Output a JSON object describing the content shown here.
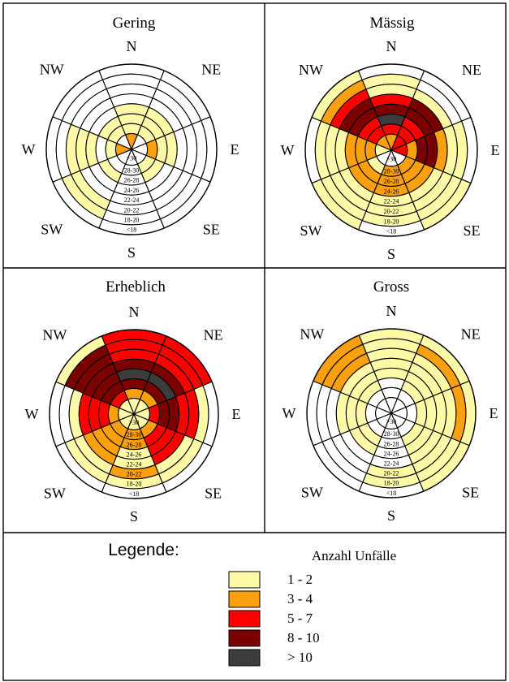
{
  "colors": {
    "empty": "#ffffff",
    "c1": "#fdf9a6",
    "c2": "#f9a011",
    "c3": "#ff0000",
    "c4": "#7b0000",
    "c5": "#3c3c3c",
    "stroke": "#000000"
  },
  "directions": [
    "N",
    "NE",
    "E",
    "SE",
    "S",
    "SW",
    "W",
    "NW"
  ],
  "ring_labels": [
    "<18",
    "18-20",
    "20-22",
    "22-24",
    "24-26",
    "26-28",
    "28-30",
    ">30"
  ],
  "legend": {
    "title": "Legende:",
    "subtitle": "Anzahl Unfälle",
    "items": [
      {
        "label": "1 - 2",
        "color_key": "c1"
      },
      {
        "label": "3 - 4",
        "color_key": "c2"
      },
      {
        "label": "5 - 7",
        "color_key": "c3"
      },
      {
        "label": "8 - 10",
        "color_key": "c4"
      },
      {
        "label": "> 10",
        "color_key": "c5"
      }
    ]
  },
  "chart_data": [
    {
      "type": "heatmap",
      "title": "Gering",
      "rings": [
        "<18",
        "18-20",
        "20-22",
        "22-24",
        "24-26",
        "26-28",
        "28-30",
        ">30"
      ],
      "sectors": [
        "N",
        "NE",
        "E",
        "SE",
        "S",
        "SW",
        "W",
        "NW"
      ],
      "cells": [
        [
          0,
          0,
          0,
          0,
          0,
          0,
          0,
          0
        ],
        [
          0,
          0,
          0,
          0,
          0,
          1,
          0,
          0
        ],
        [
          0,
          0,
          0,
          0,
          0,
          1,
          1,
          0
        ],
        [
          0,
          0,
          0,
          0,
          0,
          0,
          1,
          0
        ],
        [
          1,
          1,
          1,
          0,
          0,
          0,
          1,
          0
        ],
        [
          1,
          1,
          1,
          1,
          0,
          1,
          0,
          1
        ],
        [
          1,
          1,
          2,
          1,
          0,
          0,
          1,
          1
        ],
        [
          2,
          0,
          0,
          0,
          0,
          0,
          2,
          0
        ]
      ]
    },
    {
      "type": "heatmap",
      "title": "Mässig",
      "rings": [
        "<18",
        "18-20",
        "20-22",
        "22-24",
        "24-26",
        "26-28",
        "28-30",
        ">30"
      ],
      "sectors": [
        "N",
        "NE",
        "E",
        "SE",
        "S",
        "SW",
        "W",
        "NW"
      ],
      "cells": [
        [
          0,
          0,
          0,
          1,
          0,
          1,
          0,
          1
        ],
        [
          1,
          0,
          1,
          1,
          1,
          1,
          1,
          2
        ],
        [
          1,
          1,
          1,
          1,
          1,
          1,
          1,
          3
        ],
        [
          3,
          4,
          2,
          1,
          1,
          1,
          1,
          4
        ],
        [
          4,
          4,
          4,
          2,
          2,
          2,
          2,
          4
        ],
        [
          5,
          3,
          4,
          2,
          2,
          2,
          2,
          3
        ],
        [
          3,
          3,
          2,
          2,
          2,
          1,
          2,
          3
        ],
        [
          2,
          3,
          3,
          0,
          0,
          0,
          1,
          2
        ]
      ]
    },
    {
      "type": "heatmap",
      "title": "Erheblich",
      "rings": [
        "<18",
        "18-20",
        "20-22",
        "22-24",
        "24-26",
        "26-28",
        "28-30",
        ">30"
      ],
      "sectors": [
        "N",
        "NE",
        "E",
        "SE",
        "S",
        "SW",
        "W",
        "NW"
      ],
      "cells": [
        [
          3,
          3,
          0,
          0,
          0,
          0,
          0,
          1
        ],
        [
          3,
          3,
          1,
          1,
          1,
          1,
          0,
          4
        ],
        [
          3,
          3,
          3,
          1,
          2,
          1,
          1,
          4
        ],
        [
          4,
          4,
          3,
          3,
          1,
          2,
          3,
          4
        ],
        [
          5,
          5,
          4,
          3,
          1,
          2,
          3,
          4
        ],
        [
          4,
          4,
          4,
          3,
          2,
          2,
          3,
          4
        ],
        [
          2,
          2,
          3,
          2,
          2,
          2,
          2,
          3
        ],
        [
          1,
          1,
          1,
          1,
          1,
          1,
          1,
          1
        ]
      ]
    },
    {
      "type": "heatmap",
      "title": "Gross",
      "rings": [
        "<18",
        "18-20",
        "20-22",
        "22-24",
        "24-26",
        "26-28",
        "28-30",
        ">30"
      ],
      "sectors": [
        "N",
        "NE",
        "E",
        "SE",
        "S",
        "SW",
        "W",
        "NW"
      ],
      "cells": [
        [
          1,
          1,
          1,
          1,
          0,
          0,
          0,
          2
        ],
        [
          1,
          2,
          2,
          1,
          1,
          0,
          0,
          2
        ],
        [
          1,
          1,
          1,
          1,
          1,
          0,
          0,
          2
        ],
        [
          1,
          1,
          1,
          1,
          0,
          0,
          1,
          1
        ],
        [
          1,
          1,
          1,
          1,
          0,
          1,
          1,
          1
        ],
        [
          0,
          1,
          1,
          1,
          0,
          1,
          1,
          1
        ],
        [
          0,
          0,
          0,
          0,
          0,
          0,
          0,
          0
        ],
        [
          0,
          0,
          0,
          0,
          0,
          0,
          0,
          0
        ]
      ]
    }
  ]
}
